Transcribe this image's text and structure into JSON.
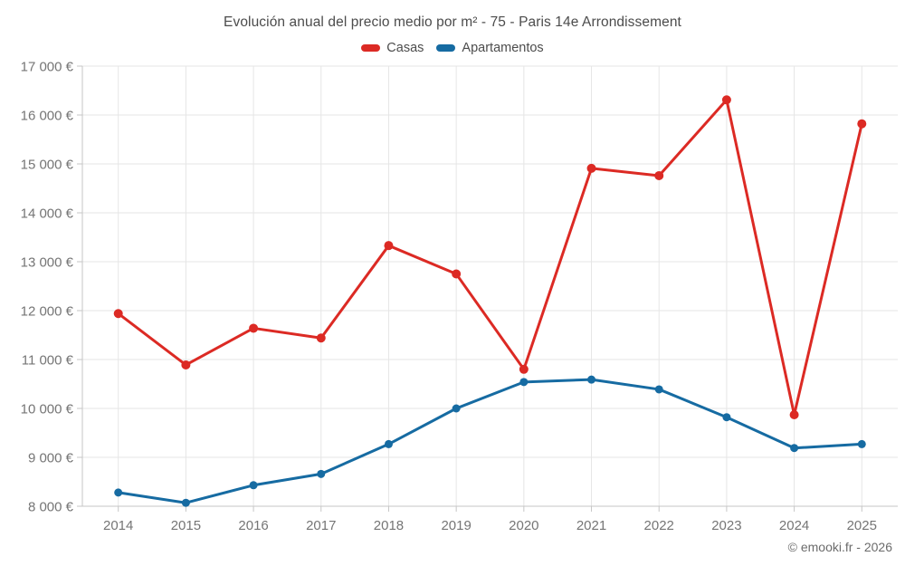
{
  "header": {
    "title": "Evolución anual del precio medio por m² - 75 - Paris 14e Arrondissement"
  },
  "footer": {
    "copyright": "© emooki.fr - 2026"
  },
  "chart_data": {
    "type": "line",
    "title": "Evolución anual del precio medio por m² - 75 - Paris 14e Arrondissement",
    "categories": [
      "2014",
      "2015",
      "2016",
      "2017",
      "2018",
      "2019",
      "2020",
      "2021",
      "2022",
      "2023",
      "2024",
      "2025"
    ],
    "series": [
      {
        "name": "Casas",
        "color": "#dc2a24",
        "marker_radius": 5,
        "values": [
          11940,
          10890,
          11640,
          11440,
          13330,
          12750,
          10800,
          14910,
          14760,
          16310,
          9870,
          15820
        ]
      },
      {
        "name": "Apartamentos",
        "color": "#166ba2",
        "marker_radius": 4.5,
        "values": [
          8280,
          8070,
          8430,
          8660,
          9270,
          10000,
          10540,
          10590,
          10390,
          9820,
          9190,
          9270
        ]
      }
    ],
    "xlabel": "",
    "ylabel": "",
    "ylim": [
      8000,
      17000
    ],
    "ytick_step": 1000,
    "ytick_suffix": " €",
    "grid": true,
    "legend_position": "top"
  },
  "style": {
    "grid_color": "#e6e6e6",
    "axis_color": "#c6c6c6",
    "tick_label_color": "#757575",
    "title_color": "#4c4c4c"
  }
}
